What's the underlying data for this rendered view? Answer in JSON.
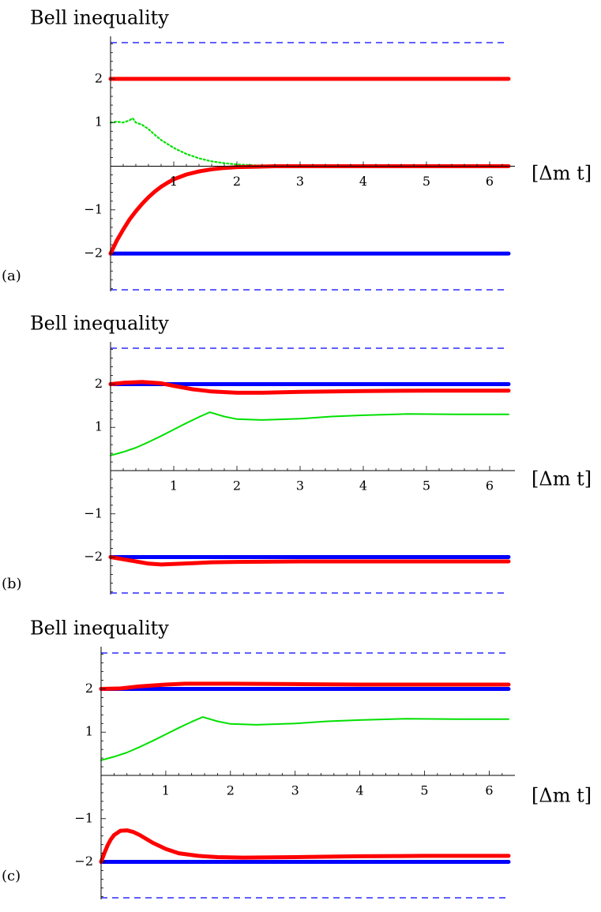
{
  "chart_data": [
    {
      "type": "line",
      "panel_label": "(a)",
      "title": "Bell inequality",
      "xlabel": "[Δm t]",
      "ylabel": "",
      "xlim": [
        0,
        6.3
      ],
      "ylim": [
        -2.83,
        2.83
      ],
      "x_ticks": [
        1,
        2,
        3,
        4,
        5,
        6
      ],
      "y_ticks": [
        -2,
        -1,
        1,
        2
      ],
      "tick_labels": {
        "x": [
          "1",
          "2",
          "3",
          "4",
          "5",
          "6"
        ],
        "y": [
          "−2",
          "−1",
          "1",
          "2"
        ]
      },
      "grid": false,
      "colors": {
        "upper_red": "#ff0000",
        "lower_red": "#ff0000",
        "blue_bound": "#0000ff",
        "green": "#00e000",
        "dashed_bound": "#0000ff"
      },
      "series": [
        {
          "color": "upper_red",
          "style": "thick",
          "x": [
            0,
            6.3
          ],
          "y": [
            2.0,
            2.0
          ]
        },
        {
          "color": "blue_bound",
          "style": "thick",
          "x": [
            0,
            6.3
          ],
          "y": [
            -2.0,
            -2.0
          ]
        },
        {
          "color": "dashed_bound",
          "style": "dashed",
          "x": [
            0,
            6.3
          ],
          "y": [
            2.83,
            2.83
          ]
        },
        {
          "color": "dashed_bound",
          "style": "dashed",
          "x": [
            0,
            6.3
          ],
          "y": [
            -2.83,
            -2.83
          ]
        },
        {
          "color": "green",
          "style": "dotted",
          "x": [
            0,
            0.1,
            0.2,
            0.3,
            0.35,
            0.4,
            0.5,
            0.6,
            0.7,
            0.8,
            1.0,
            1.2,
            1.4,
            1.6,
            1.8,
            2.0,
            2.3,
            2.6,
            3.0,
            3.5,
            4.0,
            5.0,
            6.3
          ],
          "y": [
            1.0,
            1.02,
            1.0,
            1.05,
            1.1,
            1.0,
            0.95,
            0.85,
            0.72,
            0.6,
            0.42,
            0.28,
            0.18,
            0.11,
            0.07,
            0.04,
            0.02,
            0.01,
            0.005,
            0.0,
            0.0,
            0.0,
            0.0
          ]
        },
        {
          "color": "lower_red",
          "style": "thick",
          "x": [
            0,
            0.1,
            0.2,
            0.3,
            0.4,
            0.5,
            0.6,
            0.7,
            0.8,
            0.9,
            1.0,
            1.2,
            1.4,
            1.6,
            1.8,
            2.0,
            2.3,
            2.6,
            3.0,
            4.0,
            5.0,
            6.3
          ],
          "y": [
            -2.0,
            -1.7,
            -1.45,
            -1.22,
            -1.03,
            -0.86,
            -0.71,
            -0.58,
            -0.47,
            -0.38,
            -0.3,
            -0.19,
            -0.12,
            -0.07,
            -0.04,
            -0.02,
            -0.01,
            0.0,
            0.0,
            0.0,
            0.0,
            0.0
          ]
        }
      ]
    },
    {
      "type": "line",
      "panel_label": "(b)",
      "title": "Bell inequality",
      "xlabel": "[Δm t]",
      "ylabel": "",
      "xlim": [
        0,
        6.3
      ],
      "ylim": [
        -2.83,
        2.83
      ],
      "x_ticks": [
        1,
        2,
        3,
        4,
        5,
        6
      ],
      "y_ticks": [
        -2,
        -1,
        1,
        2
      ],
      "tick_labels": {
        "x": [
          "1",
          "2",
          "3",
          "4",
          "5",
          "6"
        ],
        "y": [
          "−2",
          "−1",
          "1",
          "2"
        ]
      },
      "grid": false,
      "colors": {
        "upper_red": "#ff0000",
        "lower_red": "#ff0000",
        "blue_bound": "#0000ff",
        "green": "#00e000",
        "dashed_bound": "#0000ff"
      },
      "series": [
        {
          "color": "blue_bound",
          "style": "thick",
          "x": [
            0,
            6.3
          ],
          "y": [
            2.0,
            2.0
          ]
        },
        {
          "color": "blue_bound",
          "style": "thick",
          "x": [
            0,
            6.3
          ],
          "y": [
            -2.0,
            -2.0
          ]
        },
        {
          "color": "dashed_bound",
          "style": "dashed",
          "x": [
            0,
            6.3
          ],
          "y": [
            2.83,
            2.83
          ]
        },
        {
          "color": "dashed_bound",
          "style": "dashed",
          "x": [
            0,
            6.3
          ],
          "y": [
            -2.83,
            -2.83
          ]
        },
        {
          "color": "upper_red",
          "style": "thick",
          "x": [
            0,
            0.2,
            0.5,
            0.8,
            1.0,
            1.3,
            1.6,
            2.0,
            2.4,
            3.0,
            4.0,
            5.0,
            6.3
          ],
          "y": [
            2.0,
            2.03,
            2.05,
            2.02,
            1.96,
            1.88,
            1.83,
            1.8,
            1.8,
            1.82,
            1.84,
            1.85,
            1.85
          ]
        },
        {
          "color": "green",
          "style": "line",
          "x": [
            0,
            0.2,
            0.4,
            0.6,
            0.8,
            1.0,
            1.2,
            1.4,
            1.57,
            1.8,
            2.0,
            2.4,
            3.0,
            3.5,
            4.0,
            4.7,
            5.5,
            6.3
          ],
          "y": [
            0.35,
            0.43,
            0.53,
            0.66,
            0.8,
            0.95,
            1.1,
            1.24,
            1.35,
            1.25,
            1.19,
            1.17,
            1.2,
            1.25,
            1.28,
            1.31,
            1.3,
            1.3
          ]
        },
        {
          "color": "lower_red",
          "style": "thick",
          "x": [
            0,
            0.2,
            0.4,
            0.6,
            0.8,
            1.0,
            1.3,
            1.6,
            2.0,
            3.0,
            4.0,
            5.0,
            6.3
          ],
          "y": [
            -2.0,
            -2.05,
            -2.1,
            -2.15,
            -2.17,
            -2.16,
            -2.14,
            -2.12,
            -2.11,
            -2.1,
            -2.1,
            -2.1,
            -2.1
          ]
        }
      ]
    },
    {
      "type": "line",
      "panel_label": "(c)",
      "title": "Bell inequality",
      "xlabel": "[Δm t]",
      "ylabel": "",
      "xlim": [
        0,
        6.3
      ],
      "ylim": [
        -2.83,
        2.83
      ],
      "x_ticks": [
        1,
        2,
        3,
        4,
        5,
        6
      ],
      "y_ticks": [
        -2,
        -1,
        1,
        2
      ],
      "tick_labels": {
        "x": [
          "1",
          "2",
          "3",
          "4",
          "5",
          "6"
        ],
        "y": [
          "−2",
          "−1",
          "1",
          "2"
        ]
      },
      "grid": false,
      "colors": {
        "upper_red": "#ff0000",
        "lower_red": "#ff0000",
        "blue_bound": "#0000ff",
        "green": "#00e000",
        "dashed_bound": "#0000ff"
      },
      "series": [
        {
          "color": "blue_bound",
          "style": "thick",
          "x": [
            0,
            6.3
          ],
          "y": [
            2.0,
            2.0
          ]
        },
        {
          "color": "blue_bound",
          "style": "thick",
          "x": [
            0,
            6.3
          ],
          "y": [
            -2.0,
            -2.0
          ]
        },
        {
          "color": "dashed_bound",
          "style": "dashed",
          "x": [
            0,
            6.3
          ],
          "y": [
            2.83,
            2.83
          ]
        },
        {
          "color": "dashed_bound",
          "style": "dashed",
          "x": [
            0,
            6.3
          ],
          "y": [
            -2.83,
            -2.83
          ]
        },
        {
          "color": "upper_red",
          "style": "thick",
          "x": [
            0,
            0.3,
            0.6,
            1.0,
            1.3,
            1.6,
            2.0,
            3.0,
            4.0,
            5.0,
            6.3
          ],
          "y": [
            2.0,
            2.01,
            2.06,
            2.1,
            2.12,
            2.12,
            2.12,
            2.11,
            2.1,
            2.1,
            2.1
          ]
        },
        {
          "color": "green",
          "style": "line",
          "x": [
            0,
            0.2,
            0.4,
            0.6,
            0.8,
            1.0,
            1.2,
            1.4,
            1.57,
            1.8,
            2.0,
            2.4,
            3.0,
            3.5,
            4.0,
            4.7,
            5.5,
            6.3
          ],
          "y": [
            0.35,
            0.43,
            0.53,
            0.66,
            0.8,
            0.95,
            1.1,
            1.24,
            1.35,
            1.25,
            1.19,
            1.17,
            1.2,
            1.25,
            1.28,
            1.31,
            1.3,
            1.3
          ]
        },
        {
          "color": "lower_red",
          "style": "thick",
          "x": [
            0,
            0.05,
            0.1,
            0.15,
            0.2,
            0.3,
            0.4,
            0.5,
            0.6,
            0.8,
            1.0,
            1.2,
            1.5,
            1.8,
            2.2,
            3.0,
            4.0,
            5.0,
            6.3
          ],
          "y": [
            -2.0,
            -1.8,
            -1.62,
            -1.48,
            -1.38,
            -1.28,
            -1.27,
            -1.31,
            -1.38,
            -1.56,
            -1.7,
            -1.8,
            -1.86,
            -1.89,
            -1.9,
            -1.89,
            -1.87,
            -1.86,
            -1.86
          ]
        }
      ]
    }
  ]
}
